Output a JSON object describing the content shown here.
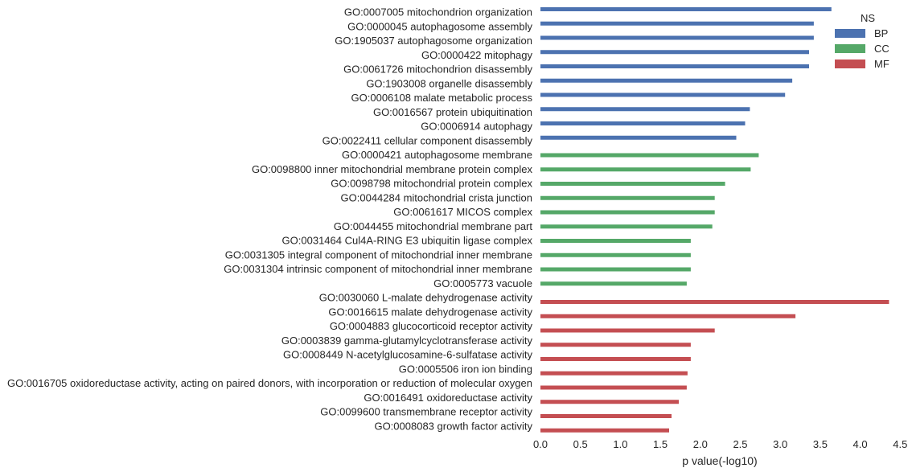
{
  "chart_data": {
    "type": "bar",
    "orientation": "horizontal",
    "xlabel": "p value(-log10)",
    "xlim": [
      0,
      4.5
    ],
    "xticks": [
      "0.0",
      "0.5",
      "1.0",
      "1.5",
      "2.0",
      "2.5",
      "3.0",
      "3.5",
      "4.0",
      "4.5"
    ],
    "grid": false,
    "legend": {
      "title": "NS",
      "position": "top-right",
      "entries": [
        {
          "name": "BP",
          "color": "#4c72b0"
        },
        {
          "name": "CC",
          "color": "#55a868"
        },
        {
          "name": "MF",
          "color": "#c44e52"
        }
      ]
    },
    "categories": [
      {
        "label": "GO:0007005 mitochondrion organization",
        "ns": "BP",
        "value": 3.64
      },
      {
        "label": "GO:0000045 autophagosome assembly",
        "ns": "BP",
        "value": 3.42
      },
      {
        "label": "GO:1905037 autophagosome organization",
        "ns": "BP",
        "value": 3.42
      },
      {
        "label": "GO:0000422 mitophagy",
        "ns": "BP",
        "value": 3.36
      },
      {
        "label": "GO:0061726 mitochondrion disassembly",
        "ns": "BP",
        "value": 3.36
      },
      {
        "label": "GO:1903008 organelle disassembly",
        "ns": "BP",
        "value": 3.15
      },
      {
        "label": "GO:0006108 malate metabolic process",
        "ns": "BP",
        "value": 3.06
      },
      {
        "label": "GO:0016567 protein ubiquitination",
        "ns": "BP",
        "value": 2.62
      },
      {
        "label": "GO:0006914 autophagy",
        "ns": "BP",
        "value": 2.56
      },
      {
        "label": "GO:0022411 cellular component disassembly",
        "ns": "BP",
        "value": 2.45
      },
      {
        "label": "GO:0000421 autophagosome membrane",
        "ns": "CC",
        "value": 2.73
      },
      {
        "label": "GO:0098800 inner mitochondrial membrane protein complex",
        "ns": "CC",
        "value": 2.63
      },
      {
        "label": "GO:0098798 mitochondrial protein complex",
        "ns": "CC",
        "value": 2.31
      },
      {
        "label": "GO:0044284 mitochondrial crista junction",
        "ns": "CC",
        "value": 2.18
      },
      {
        "label": "GO:0061617 MICOS complex",
        "ns": "CC",
        "value": 2.18
      },
      {
        "label": "GO:0044455 mitochondrial membrane part",
        "ns": "CC",
        "value": 2.15
      },
      {
        "label": "GO:0031464 Cul4A-RING E3 ubiquitin ligase complex",
        "ns": "CC",
        "value": 1.88
      },
      {
        "label": "GO:0031305 integral component of mitochondrial inner membrane",
        "ns": "CC",
        "value": 1.88
      },
      {
        "label": "GO:0031304 intrinsic component of mitochondrial inner membrane",
        "ns": "CC",
        "value": 1.88
      },
      {
        "label": "GO:0005773 vacuole",
        "ns": "CC",
        "value": 1.83
      },
      {
        "label": "GO:0030060 L-malate dehydrogenase activity",
        "ns": "MF",
        "value": 4.36
      },
      {
        "label": "GO:0016615 malate dehydrogenase activity",
        "ns": "MF",
        "value": 3.19
      },
      {
        "label": "GO:0004883 glucocorticoid receptor activity",
        "ns": "MF",
        "value": 2.18
      },
      {
        "label": "GO:0003839 gamma-glutamylcyclotransferase activity",
        "ns": "MF",
        "value": 1.88
      },
      {
        "label": "GO:0008449 N-acetylglucosamine-6-sulfatase activity",
        "ns": "MF",
        "value": 1.88
      },
      {
        "label": "GO:0005506 iron ion binding",
        "ns": "MF",
        "value": 1.84
      },
      {
        "label": "GO:0016705 oxidoreductase activity, acting on paired donors, with incorporation or reduction of molecular oxygen",
        "ns": "MF",
        "value": 1.83
      },
      {
        "label": "GO:0016491 oxidoreductase activity",
        "ns": "MF",
        "value": 1.73
      },
      {
        "label": "GO:0099600 transmembrane receptor activity",
        "ns": "MF",
        "value": 1.64
      },
      {
        "label": "GO:0008083 growth factor activity",
        "ns": "MF",
        "value": 1.61
      }
    ]
  }
}
